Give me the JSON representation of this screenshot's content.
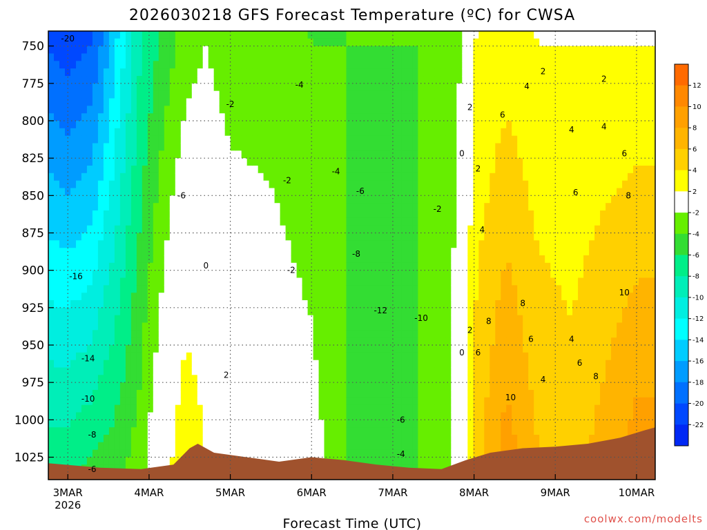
{
  "title": "2026030218 GFS Forecast Temperature (ºC) for CWSA",
  "xlabel": "Forecast Time (UTC)",
  "credit": "coolwx.com/modelts",
  "colors": {
    "terrain": "#a0522d",
    "freezing_line": "#c8196e",
    "contour_line": "#000000"
  },
  "chart_data": {
    "type": "heatmap",
    "title": "2026030218 GFS Forecast Temperature (ºC) for CWSA",
    "xlabel": "Forecast Time (UTC)",
    "ylabel": "",
    "x_ticks": [
      {
        "label": "3MAR",
        "sub": "2026",
        "day": 0
      },
      {
        "label": "4MAR",
        "day": 1
      },
      {
        "label": "5MAR",
        "day": 2
      },
      {
        "label": "6MAR",
        "day": 3
      },
      {
        "label": "7MAR",
        "day": 4
      },
      {
        "label": "8MAR",
        "day": 5
      },
      {
        "label": "9MAR",
        "day": 6
      },
      {
        "label": "10MAR",
        "day": 7
      }
    ],
    "xlim_days": [
      -0.24,
      7.23
    ],
    "y_ticks": [
      "750",
      "775",
      "800",
      "825",
      "850",
      "875",
      "900",
      "925",
      "950",
      "975",
      "1000",
      "1025"
    ],
    "ylim_hpa": [
      740,
      1040
    ],
    "grid": true,
    "colorbar": {
      "labels": [
        "12",
        "10",
        "8",
        "6",
        "4",
        "2",
        "-2",
        "-4",
        "-6",
        "-8",
        "-10",
        "-12",
        "-14",
        "-16",
        "-18",
        "-20",
        "-22"
      ],
      "bins": [
        {
          "lo": 12,
          "color": "#ff6a00"
        },
        {
          "lo": 10,
          "color": "#ff8800"
        },
        {
          "lo": 8,
          "color": "#ffa000"
        },
        {
          "lo": 6,
          "color": "#ffb400"
        },
        {
          "lo": 4,
          "color": "#ffd000"
        },
        {
          "lo": 2,
          "color": "#ffff00"
        },
        {
          "lo": -2,
          "color": "#ffffff"
        },
        {
          "lo": -4,
          "color": "#66ee00"
        },
        {
          "lo": -6,
          "color": "#33dd33"
        },
        {
          "lo": -8,
          "color": "#00ee88"
        },
        {
          "lo": -10,
          "color": "#00eeb8"
        },
        {
          "lo": -12,
          "color": "#00eee0"
        },
        {
          "lo": -14,
          "color": "#00ffff"
        },
        {
          "lo": -16,
          "color": "#00ccff"
        },
        {
          "lo": -18,
          "color": "#009cff"
        },
        {
          "lo": -20,
          "color": "#0070ff"
        },
        {
          "lo": -22,
          "color": "#0048ff"
        },
        {
          "lo": -99,
          "color": "#0028f5"
        }
      ]
    },
    "temperature_profiles": [
      {
        "day": -0.24,
        "t750": -20,
        "t1025": -7
      },
      {
        "day": 0.0,
        "t750": -21,
        "t1025": -7
      },
      {
        "day": 0.3,
        "t750": -20,
        "t1025": -6
      },
      {
        "day": 0.6,
        "t750": -14,
        "t1025": -5
      },
      {
        "day": 0.9,
        "t750": -8,
        "t1025": -3
      },
      {
        "day": 1.2,
        "t750": -5,
        "t1025": 1
      },
      {
        "day": 1.45,
        "t750": -3,
        "t1025": 4
      },
      {
        "day": 1.7,
        "t750": -2,
        "t1025": 2
      },
      {
        "day": 2.0,
        "t750": -3,
        "t1025": 1
      },
      {
        "day": 2.5,
        "t750": -3,
        "t1025": 0
      },
      {
        "day": 3.0,
        "t750": -4,
        "t1025": -1
      },
      {
        "day": 3.3,
        "t750": -4,
        "t1025": -3
      },
      {
        "day": 3.6,
        "t750": -4,
        "t1025": -5
      },
      {
        "day": 3.95,
        "t750": -4,
        "t1025": -5
      },
      {
        "day": 4.3,
        "t750": -4,
        "t1025": -4
      },
      {
        "day": 4.65,
        "t750": -3,
        "t1025": -3
      },
      {
        "day": 4.85,
        "t750": -2,
        "t1025": 0
      },
      {
        "day": 5.0,
        "t750": 2,
        "t1025": 5
      },
      {
        "day": 5.4,
        "t750": 3,
        "t1025": 9
      },
      {
        "day": 5.8,
        "t750": 2,
        "t1025": 6
      },
      {
        "day": 6.2,
        "t750": 2,
        "t1025": 5
      },
      {
        "day": 6.6,
        "t750": 2,
        "t1025": 7
      },
      {
        "day": 7.0,
        "t750": 2,
        "t1025": 9
      },
      {
        "day": 7.23,
        "t750": 2,
        "t1025": 9
      }
    ],
    "contour_labels": [
      {
        "text": "-20",
        "day": -0.0,
        "hpa": 745
      },
      {
        "text": "-2",
        "day": 2.0,
        "hpa": 789
      },
      {
        "text": "-4",
        "day": 2.85,
        "hpa": 776
      },
      {
        "text": "-4",
        "day": 3.3,
        "hpa": 834
      },
      {
        "text": "-2",
        "day": 2.7,
        "hpa": 840
      },
      {
        "text": "-6",
        "day": 3.6,
        "hpa": 847
      },
      {
        "text": "-2",
        "day": 4.55,
        "hpa": 859
      },
      {
        "text": "-6",
        "day": 1.4,
        "hpa": 850
      },
      {
        "text": "-16",
        "day": 0.1,
        "hpa": 904
      },
      {
        "text": "-14",
        "day": 0.25,
        "hpa": 959
      },
      {
        "text": "-10",
        "day": 0.25,
        "hpa": 986
      },
      {
        "text": "-8",
        "day": 0.3,
        "hpa": 1010
      },
      {
        "text": "-6",
        "day": 0.3,
        "hpa": 1033
      },
      {
        "text": "0",
        "day": 1.7,
        "hpa": 897
      },
      {
        "text": "2",
        "day": 1.95,
        "hpa": 970
      },
      {
        "text": "-2",
        "day": 2.75,
        "hpa": 900
      },
      {
        "text": "-8",
        "day": 3.55,
        "hpa": 889
      },
      {
        "text": "-12",
        "day": 3.85,
        "hpa": 927
      },
      {
        "text": "-10",
        "day": 4.35,
        "hpa": 932
      },
      {
        "text": "-6",
        "day": 4.1,
        "hpa": 1000
      },
      {
        "text": "-4",
        "day": 4.1,
        "hpa": 1023
      },
      {
        "text": "0",
        "day": 4.85,
        "hpa": 955
      },
      {
        "text": "2",
        "day": 4.95,
        "hpa": 940
      },
      {
        "text": "6",
        "day": 5.05,
        "hpa": 955
      },
      {
        "text": "8",
        "day": 5.18,
        "hpa": 934
      },
      {
        "text": "10",
        "day": 5.45,
        "hpa": 985
      },
      {
        "text": "8",
        "day": 5.6,
        "hpa": 922
      },
      {
        "text": "6",
        "day": 5.7,
        "hpa": 946
      },
      {
        "text": "4",
        "day": 5.85,
        "hpa": 973
      },
      {
        "text": "4",
        "day": 5.1,
        "hpa": 873
      },
      {
        "text": "2",
        "day": 5.05,
        "hpa": 832
      },
      {
        "text": "2",
        "day": 4.95,
        "hpa": 791
      },
      {
        "text": "0",
        "day": 4.85,
        "hpa": 822
      },
      {
        "text": "6",
        "day": 5.35,
        "hpa": 796
      },
      {
        "text": "4",
        "day": 5.65,
        "hpa": 777
      },
      {
        "text": "2",
        "day": 5.85,
        "hpa": 767
      },
      {
        "text": "4",
        "day": 6.2,
        "hpa": 806
      },
      {
        "text": "4",
        "day": 6.6,
        "hpa": 804
      },
      {
        "text": "2",
        "day": 6.6,
        "hpa": 772
      },
      {
        "text": "6",
        "day": 6.85,
        "hpa": 822
      },
      {
        "text": "6",
        "day": 6.25,
        "hpa": 848
      },
      {
        "text": "8",
        "day": 6.9,
        "hpa": 850
      },
      {
        "text": "10",
        "day": 6.85,
        "hpa": 915
      },
      {
        "text": "4",
        "day": 6.2,
        "hpa": 946
      },
      {
        "text": "6",
        "day": 6.3,
        "hpa": 962
      },
      {
        "text": "8",
        "day": 6.5,
        "hpa": 971
      }
    ]
  }
}
